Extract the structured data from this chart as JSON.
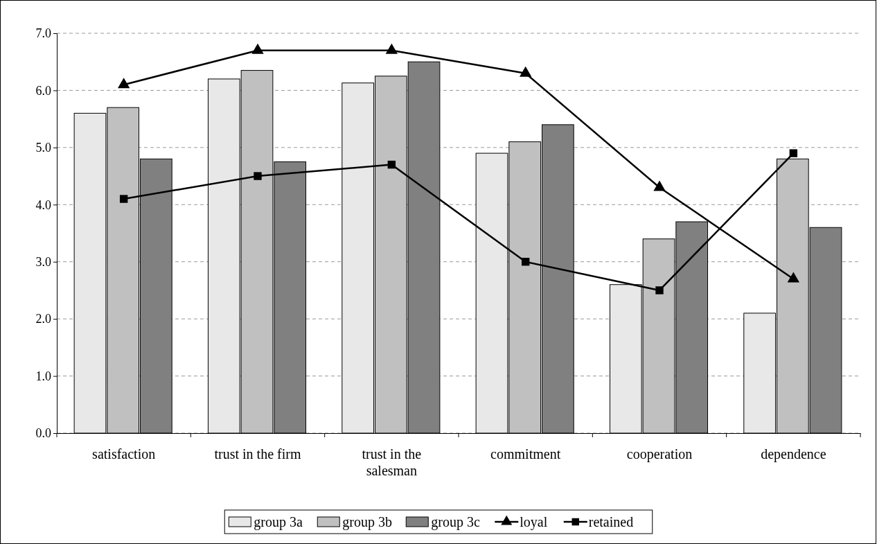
{
  "chart_data": {
    "type": "bar",
    "categories": [
      "satisfaction",
      "trust in the firm",
      "trust in the salesman",
      "commitment",
      "cooperation",
      "dependence"
    ],
    "series": [
      {
        "name": "group 3a",
        "color": "#e8e8e8",
        "values": [
          5.6,
          6.2,
          6.13,
          4.9,
          2.6,
          2.1
        ]
      },
      {
        "name": "group 3b",
        "color": "#c0c0c0",
        "values": [
          5.7,
          6.35,
          6.25,
          5.1,
          3.4,
          4.8
        ]
      },
      {
        "name": "group 3c",
        "color": "#808080",
        "values": [
          4.8,
          4.75,
          6.5,
          5.4,
          3.7,
          3.6
        ]
      },
      {
        "name": "loyal",
        "type": "line",
        "color": "#000000",
        "marker": "triangle",
        "values": [
          6.1,
          6.7,
          6.7,
          6.3,
          4.3,
          2.7
        ]
      },
      {
        "name": "retained",
        "type": "line",
        "color": "#000000",
        "marker": "square",
        "values": [
          4.1,
          4.5,
          4.7,
          3.0,
          2.5,
          4.9
        ]
      }
    ],
    "ylim": [
      0,
      7
    ],
    "yticks": [
      {
        "value": 0,
        "label": "0.0"
      },
      {
        "value": 1,
        "label": "1.0"
      },
      {
        "value": 2,
        "label": "2.0"
      },
      {
        "value": 3,
        "label": "3.0"
      },
      {
        "value": 4,
        "label": "4.0"
      },
      {
        "value": 5,
        "label": "5.0"
      },
      {
        "value": 6,
        "label": "6.0"
      },
      {
        "value": 7,
        "label": "7.0"
      }
    ],
    "grid": "y",
    "legend": "bottom",
    "line_style": "solid"
  }
}
